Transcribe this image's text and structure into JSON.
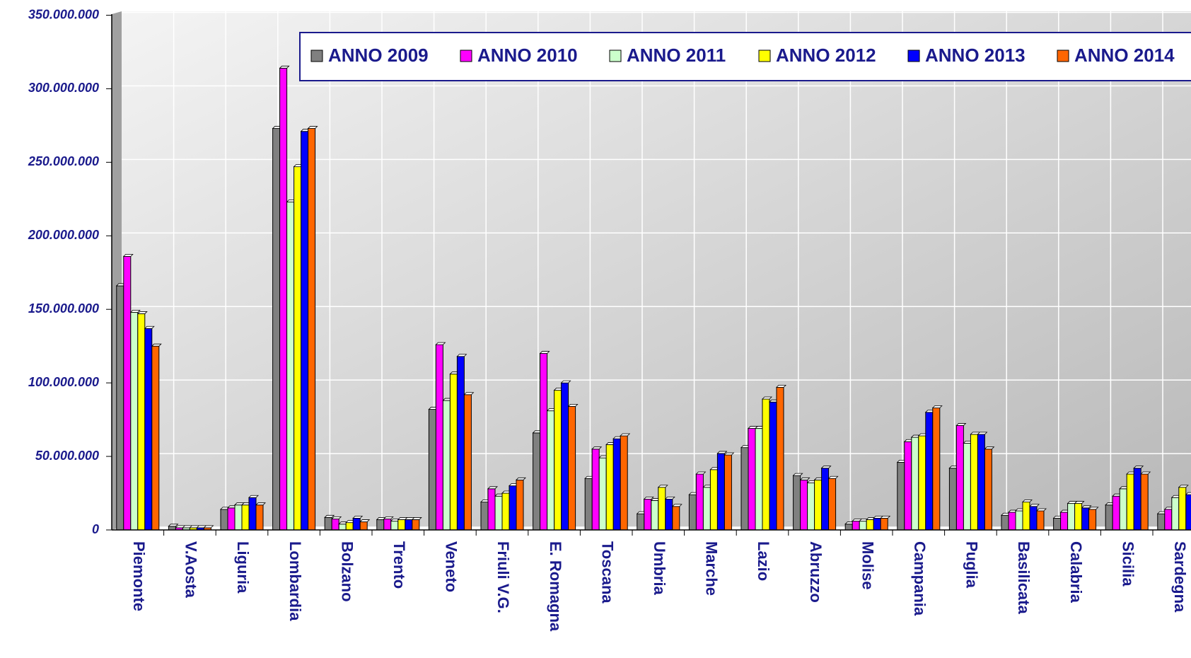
{
  "chart_data": {
    "type": "bar",
    "categories": [
      "Piemonte",
      "V.Aosta",
      "Liguria",
      "Lombardia",
      "Bolzano",
      "Trento",
      "Veneto",
      "Friuli V.G.",
      "E. Romagna",
      "Toscana",
      "Umbria",
      "Marche",
      "Lazio",
      "Abruzzo",
      "Molise",
      "Campania",
      "Puglia",
      "Basilicata",
      "Calabria",
      "Sicilia",
      "Sardegna"
    ],
    "series": [
      {
        "name": "ANNO 2009",
        "color": "#808080",
        "values": [
          166000000,
          2500000,
          14000000,
          273000000,
          8500000,
          7000000,
          82000000,
          19000000,
          66000000,
          35000000,
          11000000,
          24000000,
          56000000,
          37000000,
          4000000,
          46000000,
          42000000,
          10000000,
          8000000,
          17000000,
          11000000
        ]
      },
      {
        "name": "ANNO 2010",
        "color": "#ff00ff",
        "values": [
          186000000,
          1500000,
          15000000,
          314000000,
          7500000,
          7500000,
          126000000,
          28000000,
          120000000,
          55000000,
          21000000,
          38000000,
          69000000,
          34000000,
          6000000,
          60000000,
          71000000,
          12000000,
          12000000,
          23000000,
          14000000
        ]
      },
      {
        "name": "ANNO 2011",
        "color": "#ccffcc",
        "values": [
          148000000,
          1500000,
          17000000,
          223000000,
          4000000,
          6000000,
          88000000,
          23000000,
          81000000,
          49000000,
          20000000,
          29000000,
          69000000,
          32000000,
          6000000,
          63000000,
          59000000,
          13000000,
          18000000,
          28000000,
          22000000
        ]
      },
      {
        "name": "ANNO 2012",
        "color": "#ffff00",
        "values": [
          147000000,
          1500000,
          17000000,
          247000000,
          5000000,
          7000000,
          106000000,
          25000000,
          95000000,
          58000000,
          29000000,
          41000000,
          89000000,
          34000000,
          7000000,
          64000000,
          65000000,
          19000000,
          18000000,
          38000000,
          29000000
        ]
      },
      {
        "name": "ANNO 2013",
        "color": "#0000ff",
        "values": [
          137000000,
          1500000,
          22000000,
          271000000,
          8000000,
          7000000,
          118000000,
          30000000,
          100000000,
          62000000,
          21000000,
          52000000,
          87000000,
          42000000,
          8000000,
          80000000,
          65000000,
          16000000,
          15000000,
          42000000,
          24000000
        ]
      },
      {
        "name": "ANNO 2014",
        "color": "#ff6600",
        "values": [
          125000000,
          1500000,
          17000000,
          273000000,
          5500000,
          7000000,
          92000000,
          34000000,
          84000000,
          64000000,
          16000000,
          51000000,
          97000000,
          35000000,
          8000000,
          83000000,
          55000000,
          13000000,
          14000000,
          38000000,
          null
        ]
      }
    ],
    "ylim": [
      0,
      350000000
    ],
    "yticks": [
      0,
      {
        "value": 50000000,
        "label": "50.000.000"
      },
      {
        "value": 100000000,
        "label": "100.000.000"
      },
      {
        "value": 150000000,
        "label": "150.000.000"
      },
      {
        "value": 200000000,
        "label": "200.000.000"
      },
      {
        "value": 250000000,
        "label": "250.000.000"
      },
      {
        "value": 300000000,
        "label": "300.000.000"
      },
      {
        "value": 350000000,
        "label": "350.000.000"
      }
    ],
    "grid": true
  }
}
